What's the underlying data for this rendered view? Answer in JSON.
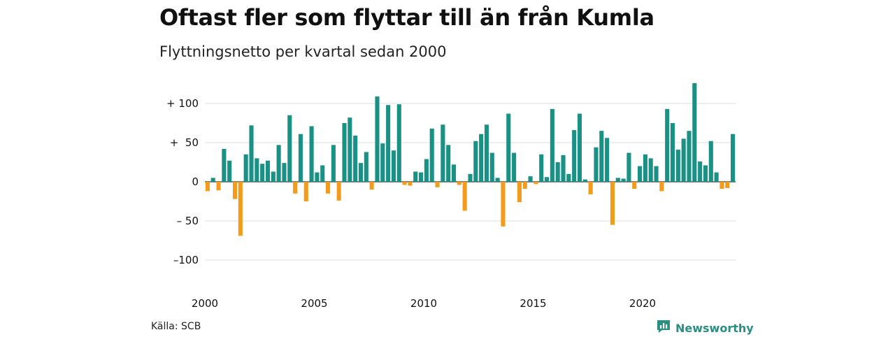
{
  "title": "Oftast fler som flyttar till än från Kumla",
  "subtitle": "Flyttningsnetto per kvartal sedan 2000",
  "source": "Källa: SCB",
  "brand": {
    "name": "Newsworthy",
    "icon": "newsworthy-logo-icon"
  },
  "colors": {
    "positive": "#1a9185",
    "negative": "#f39c1b",
    "grid": "#dcdcdc",
    "axis": "#333333",
    "brand": "#2a8f83"
  },
  "chart_data": {
    "type": "bar",
    "title": "Oftast fler som flyttar till än från Kumla",
    "subtitle": "Flyttningsnetto per kvartal sedan 2000",
    "x_start": "2000 Q1",
    "frequency": "quarter",
    "xticks": [
      2000,
      2005,
      2010,
      2015,
      2020
    ],
    "xtick_labels": [
      "2000",
      "2005",
      "2010",
      "2015",
      "2020"
    ],
    "yticks": [
      100,
      50,
      0,
      -50,
      -100
    ],
    "ytick_labels": [
      "+ 100",
      "+  50",
      "0",
      "– 50",
      "–100"
    ],
    "ylim": [
      -110,
      125
    ],
    "grid": true,
    "values": [
      -12,
      5,
      -11,
      42,
      27,
      -22,
      -69,
      35,
      72,
      30,
      23,
      27,
      13,
      47,
      24,
      85,
      -15,
      61,
      -25,
      71,
      12,
      21,
      -15,
      47,
      -24,
      75,
      82,
      59,
      24,
      38,
      -10,
      109,
      49,
      98,
      40,
      99,
      -4,
      -5,
      13,
      12,
      29,
      68,
      -7,
      73,
      47,
      22,
      -4,
      -37,
      10,
      52,
      61,
      73,
      37,
      5,
      -57,
      87,
      37,
      -26,
      -9,
      7,
      -3,
      35,
      6,
      93,
      25,
      34,
      10,
      66,
      87,
      3,
      -16,
      44,
      65,
      56,
      -55,
      5,
      4,
      37,
      -9,
      20,
      35,
      30,
      20,
      -12,
      93,
      75,
      41,
      55,
      65,
      126,
      26,
      21,
      52,
      12,
      -9,
      -8,
      61
    ]
  }
}
